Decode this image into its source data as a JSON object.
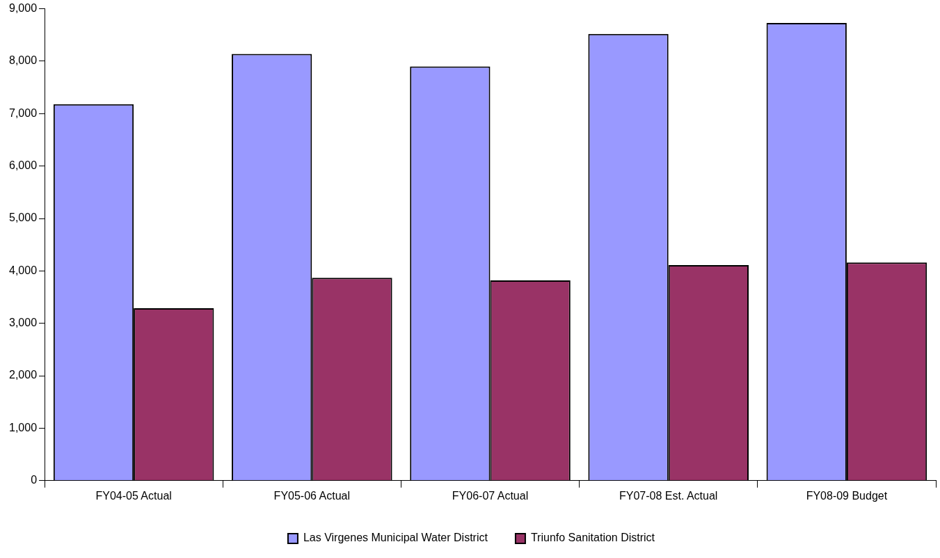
{
  "chart_data": {
    "type": "bar",
    "categories": [
      "FY04-05 Actual",
      "FY05-06 Actual",
      "FY06-07 Actual",
      "FY07-08 Est. Actual",
      "FY08-09 Budget"
    ],
    "series": [
      {
        "name": "Las Virgenes Municipal Water District",
        "color": "#9999ff",
        "values": [
          7180,
          8140,
          7900,
          8520,
          8730
        ]
      },
      {
        "name": "Triunfo Sanitation District",
        "color": "#993366",
        "values": [
          3290,
          3870,
          3820,
          4110,
          4160
        ]
      }
    ],
    "ylim": [
      0,
      9000
    ],
    "yticks": [
      {
        "value": 0,
        "label": "0"
      },
      {
        "value": 1000,
        "label": "1,000"
      },
      {
        "value": 2000,
        "label": "2,000"
      },
      {
        "value": 3000,
        "label": "3,000"
      },
      {
        "value": 4000,
        "label": "4,000"
      },
      {
        "value": 5000,
        "label": "5,000"
      },
      {
        "value": 6000,
        "label": "6,000"
      },
      {
        "value": 7000,
        "label": "7,000"
      },
      {
        "value": 8000,
        "label": "8,000"
      },
      {
        "value": 9000,
        "label": "9,000"
      }
    ],
    "grid": false,
    "legend": "bottom"
  }
}
